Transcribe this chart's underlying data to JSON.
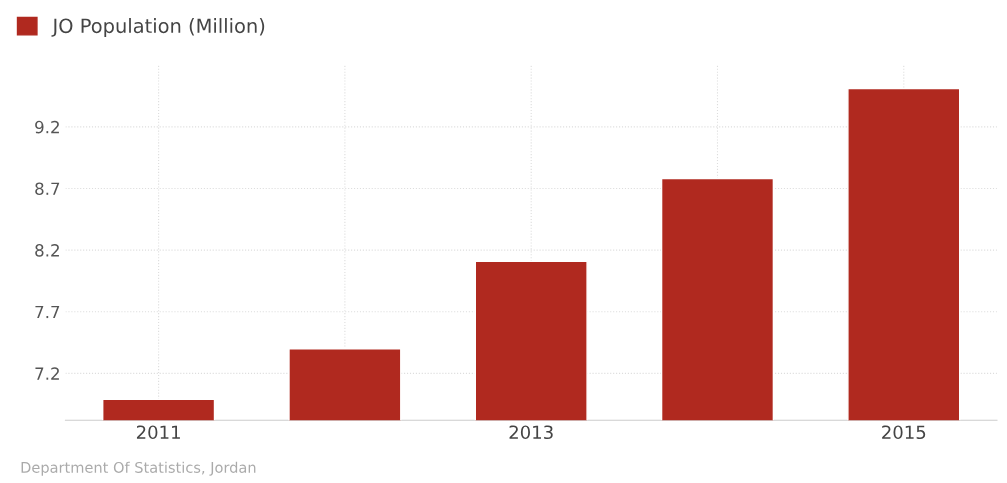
{
  "chart_data": {
    "type": "bar",
    "categories": [
      "2011",
      null,
      "2013",
      null,
      "2015"
    ],
    "series": [
      {
        "name": "JO Population (Million)",
        "color": "#b0291f",
        "values": [
          6.99,
          7.4,
          8.11,
          8.78,
          9.51
        ]
      }
    ],
    "ylim": [
      6.82,
      9.7
    ],
    "yticks": [
      7.2,
      7.7,
      8.2,
      8.7,
      9.2
    ],
    "grid": true,
    "legend": "top left",
    "annotations": [
      "Department Of Statistics, Jordan"
    ]
  }
}
